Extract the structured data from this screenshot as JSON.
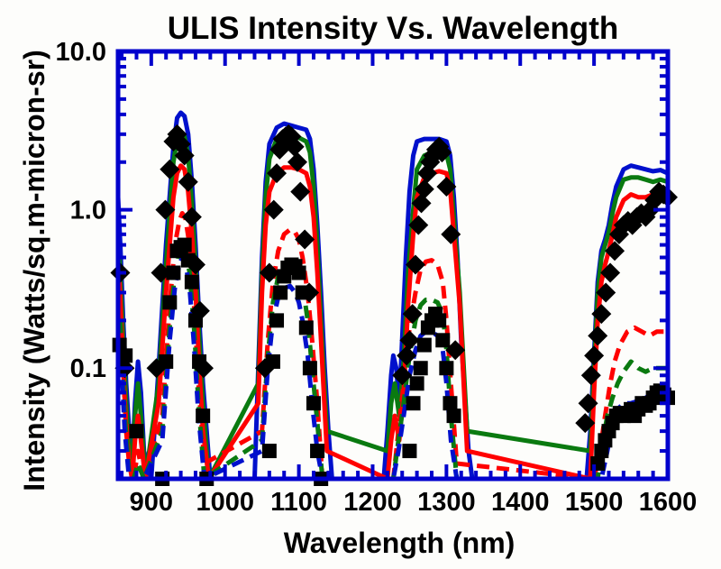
{
  "chart_data": {
    "type": "line",
    "title": "ULIS Intensity Vs. Wavelength",
    "xlabel": "Wavelength (nm)",
    "ylabel": "Intensity (Watts/sq.m-micron-sr)",
    "xlim": [
      855,
      1600
    ],
    "ylim": [
      0.02,
      10.0
    ],
    "yscale": "log",
    "grid": false,
    "legend": "none",
    "x_ticks": [
      900,
      1000,
      1100,
      1200,
      1300,
      1400,
      1500,
      1600
    ],
    "x_tick_labels": [
      "900",
      "1000",
      "1100",
      "1200",
      "1300",
      "1400",
      "1500",
      "1600"
    ],
    "y_ticks": [
      0.1,
      1.0,
      10.0
    ],
    "y_tick_labels": [
      "0.1",
      "1.0",
      "10.0"
    ],
    "colors": {
      "frame": "#0000cc",
      "blue": "#0010cc",
      "green": "#0a7a10",
      "red": "#ff0000",
      "black": "#000000"
    },
    "series": [
      {
        "name": "blue-solid",
        "color": "#0010cc",
        "dash": "solid",
        "x": [
          855,
          858,
          862,
          866,
          870,
          874,
          878,
          882,
          886,
          890,
          900,
          910,
          920,
          930,
          935,
          940,
          945,
          950,
          955,
          960,
          965,
          970,
          975,
          980,
          985,
          990,
          1040,
          1045,
          1050,
          1055,
          1060,
          1070,
          1080,
          1090,
          1100,
          1110,
          1115,
          1120,
          1125,
          1130,
          1135,
          1140,
          1145,
          1215,
          1220,
          1225,
          1228,
          1232,
          1236,
          1240,
          1245,
          1250,
          1255,
          1260,
          1270,
          1280,
          1290,
          1300,
          1305,
          1310,
          1315,
          1320,
          1330,
          1335,
          1490,
          1495,
          1500,
          1505,
          1510,
          1515,
          1520,
          1525,
          1530,
          1540,
          1550,
          1560,
          1570,
          1580,
          1590,
          1600
        ],
        "y": [
          1.2,
          0.6,
          0.2,
          0.08,
          0.04,
          0.025,
          0.06,
          0.11,
          0.07,
          0.03,
          0.02,
          0.1,
          0.6,
          2.5,
          3.8,
          4.1,
          3.9,
          3.0,
          1.5,
          0.6,
          0.2,
          0.08,
          0.04,
          0.02,
          0.02,
          0.02,
          0.02,
          0.1,
          0.5,
          1.5,
          2.6,
          3.3,
          3.5,
          3.4,
          3.3,
          3.2,
          2.8,
          1.8,
          0.8,
          0.3,
          0.1,
          0.04,
          0.02,
          0.02,
          0.04,
          0.09,
          0.12,
          0.1,
          0.06,
          0.15,
          0.5,
          1.3,
          2.2,
          2.7,
          2.8,
          2.8,
          2.8,
          2.7,
          2.2,
          1.2,
          0.5,
          0.15,
          0.03,
          0.02,
          0.02,
          0.04,
          0.12,
          0.35,
          0.55,
          0.65,
          0.8,
          1.1,
          1.4,
          1.8,
          1.9,
          1.85,
          1.8,
          1.75,
          1.78,
          1.7
        ]
      },
      {
        "name": "green-solid",
        "color": "#0a7a10",
        "dash": "solid",
        "x": [
          857,
          862,
          866,
          870,
          874,
          878,
          882,
          886,
          892,
          910,
          920,
          930,
          935,
          940,
          945,
          950,
          955,
          960,
          965,
          970,
          978,
          1045,
          1050,
          1055,
          1060,
          1070,
          1080,
          1090,
          1100,
          1110,
          1115,
          1120,
          1125,
          1130,
          1138,
          1220,
          1225,
          1230,
          1236,
          1242,
          1248,
          1255,
          1260,
          1270,
          1280,
          1290,
          1300,
          1305,
          1310,
          1318,
          1328,
          1495,
          1500,
          1505,
          1510,
          1515,
          1520,
          1525,
          1530,
          1540,
          1550,
          1560,
          1570,
          1580,
          1590,
          1600
        ],
        "y": [
          0.5,
          0.15,
          0.06,
          0.03,
          0.025,
          0.05,
          0.08,
          0.05,
          0.02,
          0.08,
          0.45,
          2.0,
          2.8,
          3.0,
          2.9,
          2.2,
          1.1,
          0.45,
          0.15,
          0.06,
          0.02,
          0.08,
          0.4,
          1.2,
          2.1,
          2.8,
          3.0,
          2.95,
          2.85,
          2.7,
          2.3,
          1.4,
          0.6,
          0.2,
          0.04,
          0.03,
          0.06,
          0.08,
          0.05,
          0.11,
          0.4,
          1.0,
          1.8,
          2.2,
          2.3,
          2.3,
          2.25,
          1.8,
          0.9,
          0.3,
          0.04,
          0.03,
          0.1,
          0.3,
          0.5,
          0.6,
          0.72,
          0.95,
          1.2,
          1.55,
          1.6,
          1.6,
          1.55,
          1.5,
          1.55,
          1.5
        ]
      },
      {
        "name": "red-solid",
        "color": "#ff0000",
        "dash": "solid",
        "x": [
          857,
          862,
          866,
          870,
          874,
          878,
          882,
          886,
          892,
          910,
          920,
          930,
          935,
          940,
          945,
          950,
          955,
          960,
          965,
          970,
          978,
          1045,
          1050,
          1055,
          1060,
          1070,
          1080,
          1090,
          1100,
          1110,
          1115,
          1120,
          1125,
          1130,
          1138,
          1220,
          1225,
          1230,
          1236,
          1242,
          1248,
          1255,
          1260,
          1270,
          1280,
          1290,
          1300,
          1305,
          1310,
          1318,
          1328,
          1495,
          1500,
          1505,
          1510,
          1515,
          1520,
          1525,
          1530,
          1540,
          1550,
          1560,
          1570,
          1580,
          1590,
          1600
        ],
        "y": [
          0.35,
          0.1,
          0.04,
          0.025,
          0.02,
          0.035,
          0.05,
          0.035,
          0.02,
          0.06,
          0.3,
          1.2,
          1.7,
          1.9,
          1.8,
          1.3,
          0.7,
          0.3,
          0.1,
          0.04,
          0.02,
          0.06,
          0.3,
          0.8,
          1.3,
          1.7,
          1.85,
          1.85,
          1.8,
          1.7,
          1.4,
          0.9,
          0.4,
          0.15,
          0.03,
          0.02,
          0.035,
          0.05,
          0.035,
          0.07,
          0.25,
          0.7,
          1.2,
          1.6,
          1.7,
          1.75,
          1.7,
          1.35,
          0.7,
          0.25,
          0.03,
          0.02,
          0.07,
          0.2,
          0.35,
          0.45,
          0.55,
          0.7,
          0.9,
          1.15,
          1.25,
          1.2,
          1.2,
          1.25,
          1.3,
          1.3
        ]
      },
      {
        "name": "red-dashed",
        "color": "#ff0000",
        "dash": "dashed",
        "x": [
          858,
          864,
          870,
          876,
          882,
          890,
          915,
          925,
          932,
          938,
          942,
          946,
          952,
          958,
          964,
          972,
          1050,
          1058,
          1065,
          1072,
          1080,
          1088,
          1095,
          1100,
          1105,
          1112,
          1118,
          1125,
          1132,
          1228,
          1235,
          1242,
          1250,
          1258,
          1265,
          1272,
          1280,
          1288,
          1295,
          1300,
          1306,
          1314,
          1500,
          1508,
          1515,
          1522,
          1528,
          1535,
          1545,
          1555,
          1565,
          1575,
          1585,
          1595,
          1600
        ],
        "y": [
          0.25,
          0.06,
          0.025,
          0.02,
          0.03,
          0.02,
          0.05,
          0.25,
          0.6,
          0.85,
          0.95,
          0.9,
          0.6,
          0.25,
          0.08,
          0.025,
          0.04,
          0.15,
          0.35,
          0.55,
          0.7,
          0.75,
          0.72,
          0.65,
          0.5,
          0.3,
          0.15,
          0.06,
          0.02,
          0.02,
          0.04,
          0.08,
          0.18,
          0.3,
          0.42,
          0.47,
          0.48,
          0.45,
          0.35,
          0.2,
          0.08,
          0.025,
          0.02,
          0.03,
          0.05,
          0.08,
          0.11,
          0.14,
          0.17,
          0.18,
          0.17,
          0.16,
          0.17,
          0.17,
          0.17
        ]
      },
      {
        "name": "green-dashed",
        "color": "#0a7a10",
        "dash": "dashed",
        "x": [
          858,
          864,
          870,
          876,
          882,
          890,
          915,
          925,
          932,
          938,
          942,
          946,
          952,
          958,
          964,
          972,
          1050,
          1058,
          1065,
          1072,
          1080,
          1088,
          1095,
          1100,
          1105,
          1112,
          1118,
          1125,
          1132,
          1228,
          1235,
          1242,
          1250,
          1258,
          1265,
          1272,
          1280,
          1288,
          1295,
          1300,
          1306,
          1314,
          1505,
          1512,
          1518,
          1525,
          1532,
          1540,
          1550,
          1560,
          1570,
          1580,
          1590,
          1600
        ],
        "y": [
          0.2,
          0.05,
          0.022,
          0.02,
          0.025,
          0.02,
          0.04,
          0.18,
          0.4,
          0.55,
          0.6,
          0.57,
          0.4,
          0.18,
          0.06,
          0.02,
          0.035,
          0.12,
          0.26,
          0.38,
          0.45,
          0.48,
          0.46,
          0.42,
          0.34,
          0.2,
          0.1,
          0.045,
          0.02,
          0.02,
          0.035,
          0.06,
          0.12,
          0.2,
          0.25,
          0.27,
          0.27,
          0.26,
          0.22,
          0.13,
          0.05,
          0.02,
          0.02,
          0.035,
          0.05,
          0.065,
          0.08,
          0.095,
          0.11,
          0.1,
          0.095,
          0.1,
          0.1,
          0.1
        ]
      },
      {
        "name": "blue-dashed",
        "color": "#0010cc",
        "dash": "dashed",
        "x": [
          858,
          864,
          870,
          876,
          882,
          890,
          915,
          925,
          932,
          938,
          942,
          946,
          952,
          958,
          964,
          972,
          1050,
          1058,
          1065,
          1072,
          1080,
          1088,
          1095,
          1100,
          1105,
          1112,
          1118,
          1125,
          1132,
          1228,
          1235,
          1242,
          1250,
          1258,
          1265,
          1272,
          1280,
          1288,
          1295,
          1300,
          1306,
          1314,
          1510,
          1518,
          1525,
          1532,
          1540,
          1550,
          1560,
          1570,
          1580,
          1590,
          1600
        ],
        "y": [
          0.15,
          0.04,
          0.02,
          0.02,
          0.02,
          0.02,
          0.035,
          0.15,
          0.32,
          0.45,
          0.5,
          0.47,
          0.32,
          0.14,
          0.05,
          0.02,
          0.03,
          0.1,
          0.2,
          0.28,
          0.32,
          0.33,
          0.3,
          0.26,
          0.2,
          0.12,
          0.06,
          0.03,
          0.02,
          0.02,
          0.03,
          0.05,
          0.09,
          0.13,
          0.16,
          0.17,
          0.17,
          0.16,
          0.13,
          0.08,
          0.035,
          0.02,
          0.02,
          0.03,
          0.045,
          0.055,
          0.06,
          0.06,
          0.062,
          0.065,
          0.07,
          0.068,
          0.066
        ]
      },
      {
        "name": "black-diamonds",
        "color": "#000000",
        "marker": "diamond",
        "x": [
          858,
          864,
          907,
          913,
          919,
          925,
          930,
          935,
          940,
          945,
          950,
          955,
          960,
          966,
          971,
          1054,
          1060,
          1066,
          1070,
          1074,
          1078,
          1082,
          1086,
          1090,
          1094,
          1098,
          1102,
          1108,
          1114,
          1240,
          1246,
          1250,
          1254,
          1258,
          1262,
          1266,
          1270,
          1274,
          1278,
          1282,
          1286,
          1290,
          1294,
          1300,
          1306,
          1312,
          1488,
          1492,
          1496,
          1500,
          1505,
          1510,
          1516,
          1522,
          1528,
          1534,
          1540,
          1546,
          1552,
          1558,
          1564,
          1570,
          1576,
          1582,
          1588,
          1594,
          1600
        ],
        "y": [
          0.4,
          0.1,
          0.1,
          0.4,
          1.0,
          1.8,
          2.7,
          3.0,
          2.6,
          2.2,
          1.5,
          0.9,
          0.45,
          0.23,
          0.1,
          0.1,
          0.4,
          1.0,
          1.7,
          2.4,
          2.8,
          2.9,
          3.0,
          2.9,
          2.5,
          2.0,
          1.3,
          0.65,
          0.3,
          0.09,
          0.12,
          0.15,
          0.22,
          0.45,
          0.8,
          1.1,
          1.35,
          1.7,
          2.0,
          2.2,
          2.4,
          2.5,
          2.3,
          1.4,
          0.7,
          0.13,
          0.045,
          0.06,
          0.09,
          0.12,
          0.16,
          0.22,
          0.3,
          0.4,
          0.55,
          0.7,
          0.8,
          0.85,
          0.8,
          0.9,
          0.95,
          0.9,
          1.0,
          1.15,
          1.3,
          1.25,
          1.2
        ]
      },
      {
        "name": "black-squares",
        "color": "#000000",
        "marker": "square",
        "x": [
          857,
          865,
          880,
          915,
          920,
          925,
          930,
          935,
          940,
          945,
          950,
          955,
          960,
          965,
          970,
          975,
          1060,
          1065,
          1070,
          1075,
          1080,
          1085,
          1090,
          1095,
          1100,
          1105,
          1110,
          1115,
          1120,
          1125,
          1130,
          1250,
          1255,
          1260,
          1265,
          1270,
          1275,
          1280,
          1285,
          1290,
          1295,
          1300,
          1305,
          1310,
          1505,
          1510,
          1515,
          1520,
          1525,
          1530,
          1535,
          1540,
          1545,
          1550,
          1555,
          1560,
          1565,
          1570,
          1575,
          1580,
          1585,
          1590,
          1595,
          1600
        ],
        "y": [
          0.14,
          0.12,
          0.04,
          0.02,
          0.11,
          0.26,
          0.4,
          0.55,
          0.58,
          0.6,
          0.48,
          0.35,
          0.2,
          0.11,
          0.05,
          0.02,
          0.03,
          0.11,
          0.2,
          0.3,
          0.38,
          0.43,
          0.45,
          0.44,
          0.4,
          0.3,
          0.18,
          0.1,
          0.06,
          0.03,
          0.02,
          0.03,
          0.06,
          0.08,
          0.1,
          0.14,
          0.18,
          0.2,
          0.22,
          0.2,
          0.15,
          0.1,
          0.06,
          0.05,
          0.025,
          0.03,
          0.035,
          0.04,
          0.045,
          0.05,
          0.052,
          0.05,
          0.052,
          0.055,
          0.05,
          0.055,
          0.06,
          0.058,
          0.06,
          0.065,
          0.07,
          0.072,
          0.068,
          0.065
        ]
      }
    ]
  }
}
